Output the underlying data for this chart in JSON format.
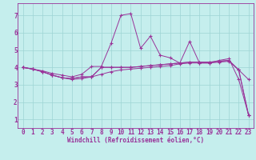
{
  "xlabel": "Windchill (Refroidissement éolien,°C)",
  "ylabel": "",
  "xlim": [
    -0.5,
    23.5
  ],
  "ylim": [
    0.5,
    7.7
  ],
  "yticks": [
    1,
    2,
    3,
    4,
    5,
    6,
    7
  ],
  "xticks": [
    0,
    1,
    2,
    3,
    4,
    5,
    6,
    7,
    8,
    9,
    10,
    11,
    12,
    13,
    14,
    15,
    16,
    17,
    18,
    19,
    20,
    21,
    22,
    23
  ],
  "bg_color": "#c5eeed",
  "grid_color": "#9dd4d4",
  "line_color": "#993399",
  "marker": "+",
  "markersize": 3,
  "linewidth": 0.7,
  "series": [
    [
      4.0,
      3.9,
      3.8,
      3.65,
      3.55,
      3.45,
      3.6,
      4.05,
      4.05,
      5.4,
      7.0,
      7.1,
      5.1,
      5.8,
      4.7,
      4.55,
      4.25,
      5.5,
      4.25,
      4.25,
      4.4,
      4.5,
      3.3,
      1.25
    ],
    [
      4.0,
      3.9,
      3.75,
      3.55,
      3.4,
      3.35,
      3.45,
      3.45,
      4.0,
      4.0,
      4.0,
      4.0,
      4.05,
      4.1,
      4.15,
      4.2,
      4.25,
      4.3,
      4.3,
      4.3,
      4.35,
      4.4,
      3.85,
      3.3
    ],
    [
      4.0,
      3.9,
      3.75,
      3.55,
      3.4,
      3.35,
      3.45,
      3.45,
      4.0,
      4.0,
      4.0,
      4.0,
      4.05,
      4.1,
      4.15,
      4.2,
      4.25,
      4.3,
      4.3,
      4.3,
      4.35,
      4.4,
      3.85,
      1.25
    ],
    [
      4.0,
      3.9,
      3.75,
      3.55,
      3.4,
      3.3,
      3.35,
      3.45,
      3.6,
      3.75,
      3.85,
      3.9,
      3.95,
      4.0,
      4.05,
      4.1,
      4.2,
      4.25,
      4.25,
      4.25,
      4.3,
      4.35,
      3.85,
      1.25
    ]
  ],
  "tick_fontsize": 5.5,
  "xlabel_fontsize": 5.5
}
